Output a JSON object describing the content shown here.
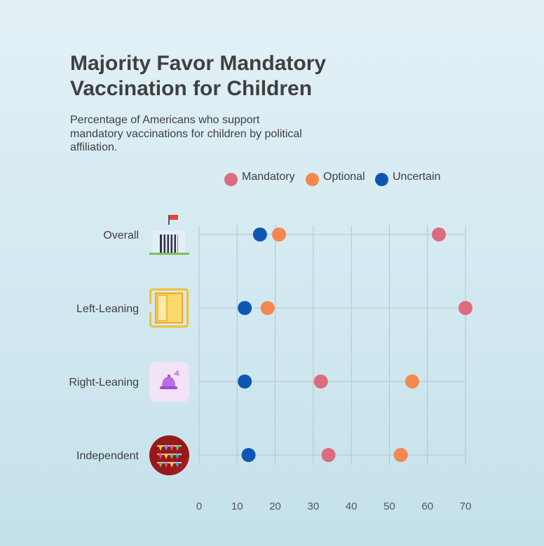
{
  "title_lines": [
    "Majority Favor Mandatory",
    "Vaccination for Children"
  ],
  "subtitle_lines": [
    "Percentage of Americans who support",
    "mandatory vaccinations for children by political",
    "affiliation."
  ],
  "chart_data": {
    "type": "scatter",
    "title": "Majority Favor Mandatory Vaccination for Children",
    "subtitle": "Percentage of Americans who support mandatory vaccinations for children by political affiliation.",
    "categories": [
      "Overall",
      "Left-Leaning",
      "Right-Leaning",
      "Independent"
    ],
    "xlim": [
      0,
      70
    ],
    "xticks": [
      0,
      10,
      20,
      30,
      40,
      50,
      60,
      70
    ],
    "grid": true,
    "legend_position": "top",
    "series": [
      {
        "name": "Mandatory",
        "color": "#dc6b7f",
        "values": [
          63,
          70,
          32,
          34
        ]
      },
      {
        "name": "Optional",
        "color": "#f3874f",
        "values": [
          21,
          18,
          56,
          53
        ]
      },
      {
        "name": "Uncertain",
        "color": "#0f56b3",
        "values": [
          16,
          12,
          12,
          13
        ]
      }
    ],
    "category_icons": [
      "government-building-icon",
      "door-icon",
      "bell-icon",
      "bunting-flags-icon"
    ]
  }
}
